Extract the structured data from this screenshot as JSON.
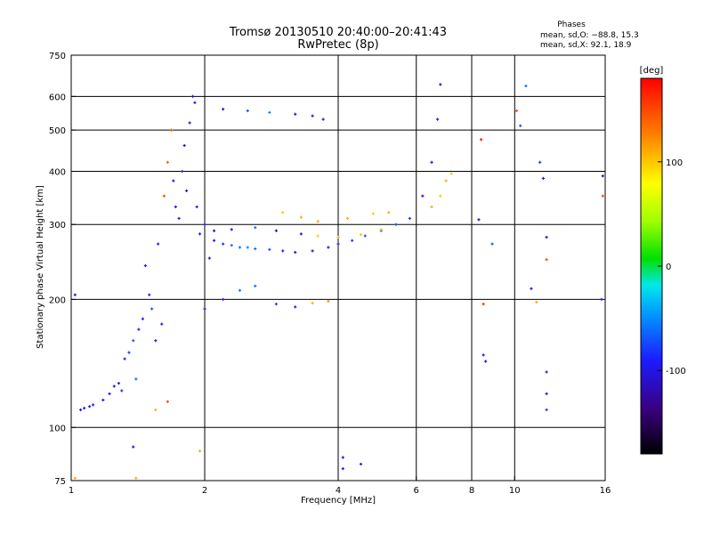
{
  "chart_data": {
    "type": "scatter",
    "title": "Tromsø 20130510 20:40:00–20:41:43",
    "subtitle": "RwPretec (8p)",
    "xlabel": "Frequency [MHz]",
    "ylabel": "Stationary phase Virtual Height [km]",
    "x_scale": "log",
    "y_scale": "log",
    "xlim": [
      1,
      16
    ],
    "ylim": [
      75,
      750
    ],
    "x_ticks": [
      1,
      2,
      4,
      6,
      8,
      10,
      16
    ],
    "y_ticks": [
      75,
      100,
      200,
      300,
      400,
      500,
      600,
      750
    ],
    "grid": true,
    "stats": {
      "heading": "Phases",
      "line1": "mean, sd,O: −88.8, 15.3",
      "line2": "mean, sd,X:  92.1, 18.9"
    },
    "colorbar": {
      "label": "[deg]",
      "min": -180,
      "max": 180,
      "ticks": [
        100,
        0,
        -100
      ],
      "colormap": "rainbow (black-purple-blue-cyan-green-yellow-red)"
    },
    "series": [
      {
        "name": "",
        "points": [
          {
            "x": 1.02,
            "y": 205,
            "c": -100
          },
          {
            "x": 1.05,
            "y": 110,
            "c": -100
          },
          {
            "x": 1.07,
            "y": 111,
            "c": -95
          },
          {
            "x": 1.1,
            "y": 112,
            "c": -100
          },
          {
            "x": 1.12,
            "y": 113,
            "c": -90
          },
          {
            "x": 1.18,
            "y": 116,
            "c": -95
          },
          {
            "x": 1.22,
            "y": 120,
            "c": -100
          },
          {
            "x": 1.25,
            "y": 125,
            "c": -100
          },
          {
            "x": 1.28,
            "y": 127,
            "c": -90
          },
          {
            "x": 1.3,
            "y": 122,
            "c": -80
          },
          {
            "x": 1.32,
            "y": 145,
            "c": -100
          },
          {
            "x": 1.35,
            "y": 150,
            "c": -80
          },
          {
            "x": 1.38,
            "y": 160,
            "c": -70
          },
          {
            "x": 1.4,
            "y": 130,
            "c": -60
          },
          {
            "x": 1.42,
            "y": 170,
            "c": -90
          },
          {
            "x": 1.45,
            "y": 180,
            "c": -95
          },
          {
            "x": 1.47,
            "y": 240,
            "c": -90
          },
          {
            "x": 1.5,
            "y": 205,
            "c": -85
          },
          {
            "x": 1.52,
            "y": 190,
            "c": -70
          },
          {
            "x": 1.55,
            "y": 160,
            "c": -100
          },
          {
            "x": 1.57,
            "y": 270,
            "c": -95
          },
          {
            "x": 1.6,
            "y": 175,
            "c": -90
          },
          {
            "x": 1.62,
            "y": 350,
            "c": 150
          },
          {
            "x": 1.65,
            "y": 420,
            "c": 140
          },
          {
            "x": 1.68,
            "y": 500,
            "c": 150
          },
          {
            "x": 1.7,
            "y": 380,
            "c": -100
          },
          {
            "x": 1.72,
            "y": 330,
            "c": -100
          },
          {
            "x": 1.75,
            "y": 310,
            "c": -95
          },
          {
            "x": 1.78,
            "y": 400,
            "c": -95
          },
          {
            "x": 1.8,
            "y": 460,
            "c": -100
          },
          {
            "x": 1.82,
            "y": 360,
            "c": -100
          },
          {
            "x": 1.85,
            "y": 520,
            "c": -95
          },
          {
            "x": 1.88,
            "y": 600,
            "c": -110
          },
          {
            "x": 1.9,
            "y": 580,
            "c": -100
          },
          {
            "x": 1.92,
            "y": 330,
            "c": -90
          },
          {
            "x": 1.95,
            "y": 285,
            "c": -95
          },
          {
            "x": 2.0,
            "y": 300,
            "c": -90
          },
          {
            "x": 2.05,
            "y": 250,
            "c": -100
          },
          {
            "x": 2.1,
            "y": 275,
            "c": -100
          },
          {
            "x": 2.2,
            "y": 270,
            "c": -80
          },
          {
            "x": 2.3,
            "y": 268,
            "c": -60
          },
          {
            "x": 2.4,
            "y": 265,
            "c": -60
          },
          {
            "x": 2.5,
            "y": 265,
            "c": -50
          },
          {
            "x": 2.6,
            "y": 263,
            "c": -60
          },
          {
            "x": 2.8,
            "y": 262,
            "c": -70
          },
          {
            "x": 3.0,
            "y": 260,
            "c": -90
          },
          {
            "x": 3.2,
            "y": 258,
            "c": -100
          },
          {
            "x": 3.5,
            "y": 260,
            "c": -100
          },
          {
            "x": 3.8,
            "y": 265,
            "c": -100
          },
          {
            "x": 4.0,
            "y": 270,
            "c": -90
          },
          {
            "x": 4.3,
            "y": 275,
            "c": -80
          },
          {
            "x": 4.6,
            "y": 282,
            "c": -70
          },
          {
            "x": 5.0,
            "y": 290,
            "c": -60
          },
          {
            "x": 5.4,
            "y": 300,
            "c": -70
          },
          {
            "x": 5.8,
            "y": 310,
            "c": -80
          },
          {
            "x": 6.2,
            "y": 350,
            "c": -100
          },
          {
            "x": 6.5,
            "y": 420,
            "c": -100
          },
          {
            "x": 6.7,
            "y": 530,
            "c": -95
          },
          {
            "x": 6.8,
            "y": 640,
            "c": -100
          },
          {
            "x": 2.2,
            "y": 560,
            "c": -100
          },
          {
            "x": 2.5,
            "y": 555,
            "c": -70
          },
          {
            "x": 2.8,
            "y": 550,
            "c": -50
          },
          {
            "x": 3.2,
            "y": 545,
            "c": -100
          },
          {
            "x": 3.5,
            "y": 540,
            "c": -100
          },
          {
            "x": 3.7,
            "y": 530,
            "c": -100
          },
          {
            "x": 2.1,
            "y": 290,
            "c": -110
          },
          {
            "x": 2.3,
            "y": 292,
            "c": -100
          },
          {
            "x": 2.6,
            "y": 295,
            "c": -60
          },
          {
            "x": 2.9,
            "y": 290,
            "c": -120
          },
          {
            "x": 3.3,
            "y": 285,
            "c": -110
          },
          {
            "x": 3.6,
            "y": 282,
            "c": 100
          },
          {
            "x": 4.0,
            "y": 280,
            "c": 110
          },
          {
            "x": 4.5,
            "y": 284,
            "c": 100
          },
          {
            "x": 5.0,
            "y": 292,
            "c": 100
          },
          {
            "x": 3.0,
            "y": 320,
            "c": 100
          },
          {
            "x": 3.3,
            "y": 312,
            "c": 110
          },
          {
            "x": 3.6,
            "y": 305,
            "c": 110
          },
          {
            "x": 4.2,
            "y": 310,
            "c": 110
          },
          {
            "x": 4.8,
            "y": 318,
            "c": 100
          },
          {
            "x": 5.2,
            "y": 320,
            "c": 110
          },
          {
            "x": 6.5,
            "y": 330,
            "c": 110
          },
          {
            "x": 6.8,
            "y": 350,
            "c": 100
          },
          {
            "x": 7.0,
            "y": 380,
            "c": 110
          },
          {
            "x": 7.2,
            "y": 395,
            "c": 100
          },
          {
            "x": 2.0,
            "y": 190,
            "c": -100
          },
          {
            "x": 2.2,
            "y": 200,
            "c": -90
          },
          {
            "x": 2.4,
            "y": 210,
            "c": -60
          },
          {
            "x": 2.6,
            "y": 215,
            "c": -60
          },
          {
            "x": 2.9,
            "y": 195,
            "c": -80
          },
          {
            "x": 3.2,
            "y": 192,
            "c": -100
          },
          {
            "x": 3.5,
            "y": 196,
            "c": 110
          },
          {
            "x": 3.8,
            "y": 198,
            "c": 120
          },
          {
            "x": 1.55,
            "y": 110,
            "c": 110
          },
          {
            "x": 1.65,
            "y": 115,
            "c": 150
          },
          {
            "x": 1.38,
            "y": 90,
            "c": -100
          },
          {
            "x": 1.95,
            "y": 88,
            "c": 110
          },
          {
            "x": 4.1,
            "y": 85,
            "c": -100
          },
          {
            "x": 4.1,
            "y": 80,
            "c": -90
          },
          {
            "x": 4.5,
            "y": 82,
            "c": -90
          },
          {
            "x": 1.02,
            "y": 76,
            "c": 110
          },
          {
            "x": 1.4,
            "y": 76,
            "c": 110
          },
          {
            "x": 8.4,
            "y": 475,
            "c": 170
          },
          {
            "x": 8.3,
            "y": 308,
            "c": -110
          },
          {
            "x": 8.5,
            "y": 195,
            "c": 160
          },
          {
            "x": 8.5,
            "y": 148,
            "c": -100
          },
          {
            "x": 8.6,
            "y": 143,
            "c": -110
          },
          {
            "x": 8.9,
            "y": 270,
            "c": -70
          },
          {
            "x": 10.1,
            "y": 555,
            "c": 150
          },
          {
            "x": 10.3,
            "y": 512,
            "c": -70
          },
          {
            "x": 10.6,
            "y": 635,
            "c": -60
          },
          {
            "x": 10.9,
            "y": 212,
            "c": -100
          },
          {
            "x": 11.2,
            "y": 197,
            "c": 110
          },
          {
            "x": 11.4,
            "y": 420,
            "c": -80
          },
          {
            "x": 11.6,
            "y": 385,
            "c": -90
          },
          {
            "x": 11.8,
            "y": 280,
            "c": -100
          },
          {
            "x": 11.8,
            "y": 248,
            "c": 150
          },
          {
            "x": 11.8,
            "y": 135,
            "c": -90
          },
          {
            "x": 11.8,
            "y": 120,
            "c": -100
          },
          {
            "x": 11.8,
            "y": 110,
            "c": -80
          },
          {
            "x": 15.8,
            "y": 390,
            "c": -120
          },
          {
            "x": 15.8,
            "y": 350,
            "c": 150
          },
          {
            "x": 15.7,
            "y": 200,
            "c": -100
          }
        ]
      }
    ]
  }
}
